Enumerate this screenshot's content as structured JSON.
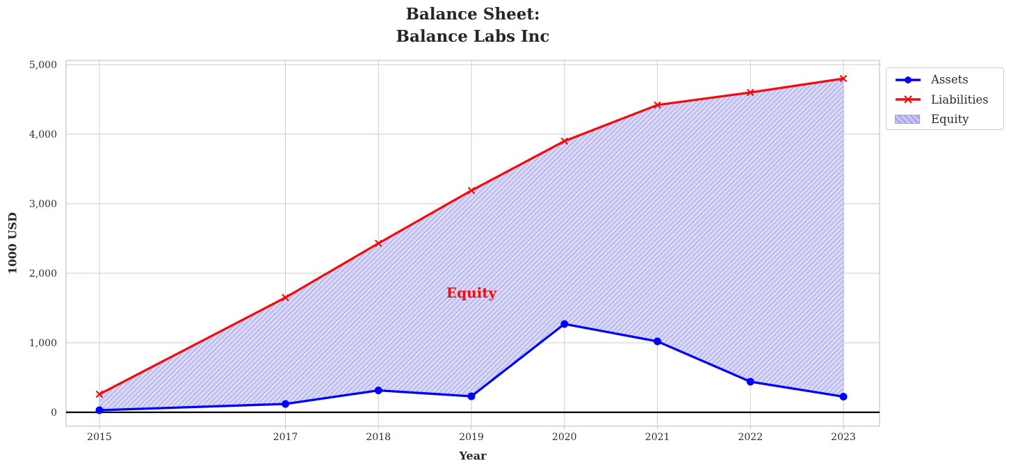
{
  "chart_data": {
    "type": "line",
    "title": "Balance Sheet:\nBalance Labs Inc",
    "title_lines": [
      "Balance Sheet:",
      "Balance Labs Inc"
    ],
    "xlabel": "Year",
    "ylabel": "1000 USD",
    "x": [
      2015,
      2017,
      2018,
      2019,
      2020,
      2021,
      2022,
      2023
    ],
    "xtick_labels": [
      "2015",
      "2017",
      "2018",
      "2019",
      "2020",
      "2021",
      "2022",
      "2023"
    ],
    "yticks": [
      0,
      1000,
      2000,
      3000,
      4000,
      5000
    ],
    "ytick_labels": [
      "0",
      "1,000",
      "2,000",
      "3,000",
      "4,000",
      "5,000"
    ],
    "ylim": [
      -200,
      5060
    ],
    "grid": true,
    "zero_line": true,
    "series": [
      {
        "name": "Assets",
        "color": "#0000FF",
        "marker": "circle",
        "values": [
          30,
          120,
          315,
          230,
          1270,
          1020,
          440,
          225
        ]
      },
      {
        "name": "Liabilities",
        "color": "#F10D0D",
        "marker": "x",
        "values": [
          260,
          1650,
          2430,
          3190,
          3900,
          4420,
          4600,
          4800
        ]
      }
    ],
    "fill_between": {
      "label": "Equity",
      "between": [
        "Assets",
        "Liabilities"
      ],
      "base_color": "#DBDBF6",
      "hatch_color": "#B6B5EE",
      "hatch": "///"
    },
    "annotation": {
      "text": "Equity",
      "x": 2019,
      "y": 1720,
      "color": "#F10D0D"
    },
    "legend": {
      "position": "outside-upper-right",
      "entries": [
        "Assets",
        "Liabilities",
        "Equity"
      ]
    },
    "colors": {
      "grid": "#CCCCCC",
      "spine": "#C4C4C4",
      "tick_text": "#2B2B2B",
      "zero_line": "#000000"
    }
  }
}
